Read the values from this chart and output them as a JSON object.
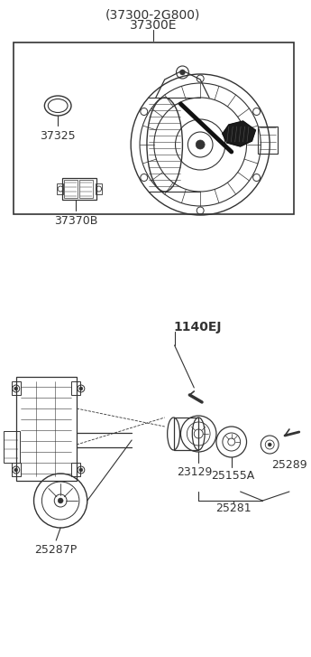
{
  "bg_color": "#ffffff",
  "fig_width": 3.45,
  "fig_height": 7.27,
  "dpi": 100,
  "top_label1": "(37300-2G800)",
  "top_label2": "37300E",
  "label_37325": "37325",
  "label_37370B": "37370B",
  "label_1140EJ": "1140EJ",
  "label_25287P": "25287P",
  "label_23129": "23129",
  "label_25155A": "25155A",
  "label_25289": "25289",
  "label_25281": "25281",
  "line_color": "#333333",
  "text_color": "#333333",
  "font_size_big": 10,
  "font_size_label": 9
}
